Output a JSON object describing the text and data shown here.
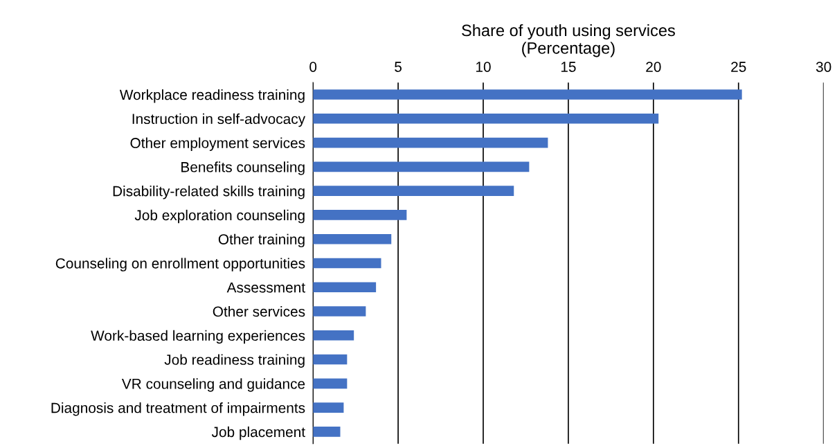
{
  "chart_data": {
    "type": "bar",
    "orientation": "horizontal",
    "xlabel": "Share of youth using services\n(Percentage)",
    "categories": [
      "Workplace readiness training",
      "Instruction in self-advocacy",
      "Other employment services",
      "Benefits counseling",
      "Disability-related skills training",
      "Job exploration counseling",
      "Other training",
      "Counseling on enrollment opportunities",
      "Assessment",
      "Other services",
      "Work-based learning experiences",
      "Job readiness training",
      "VR counseling and guidance",
      "Diagnosis and treatment of impairments",
      "Job placement"
    ],
    "values": [
      25.2,
      20.3,
      13.8,
      12.7,
      11.8,
      5.5,
      4.6,
      4.0,
      3.7,
      3.1,
      2.4,
      2.0,
      2.0,
      1.8,
      1.6
    ],
    "color": "#4472c4",
    "xlim": [
      0,
      30
    ],
    "xticks": [
      0,
      5,
      10,
      15,
      20,
      25,
      30
    ],
    "grid": "x"
  }
}
